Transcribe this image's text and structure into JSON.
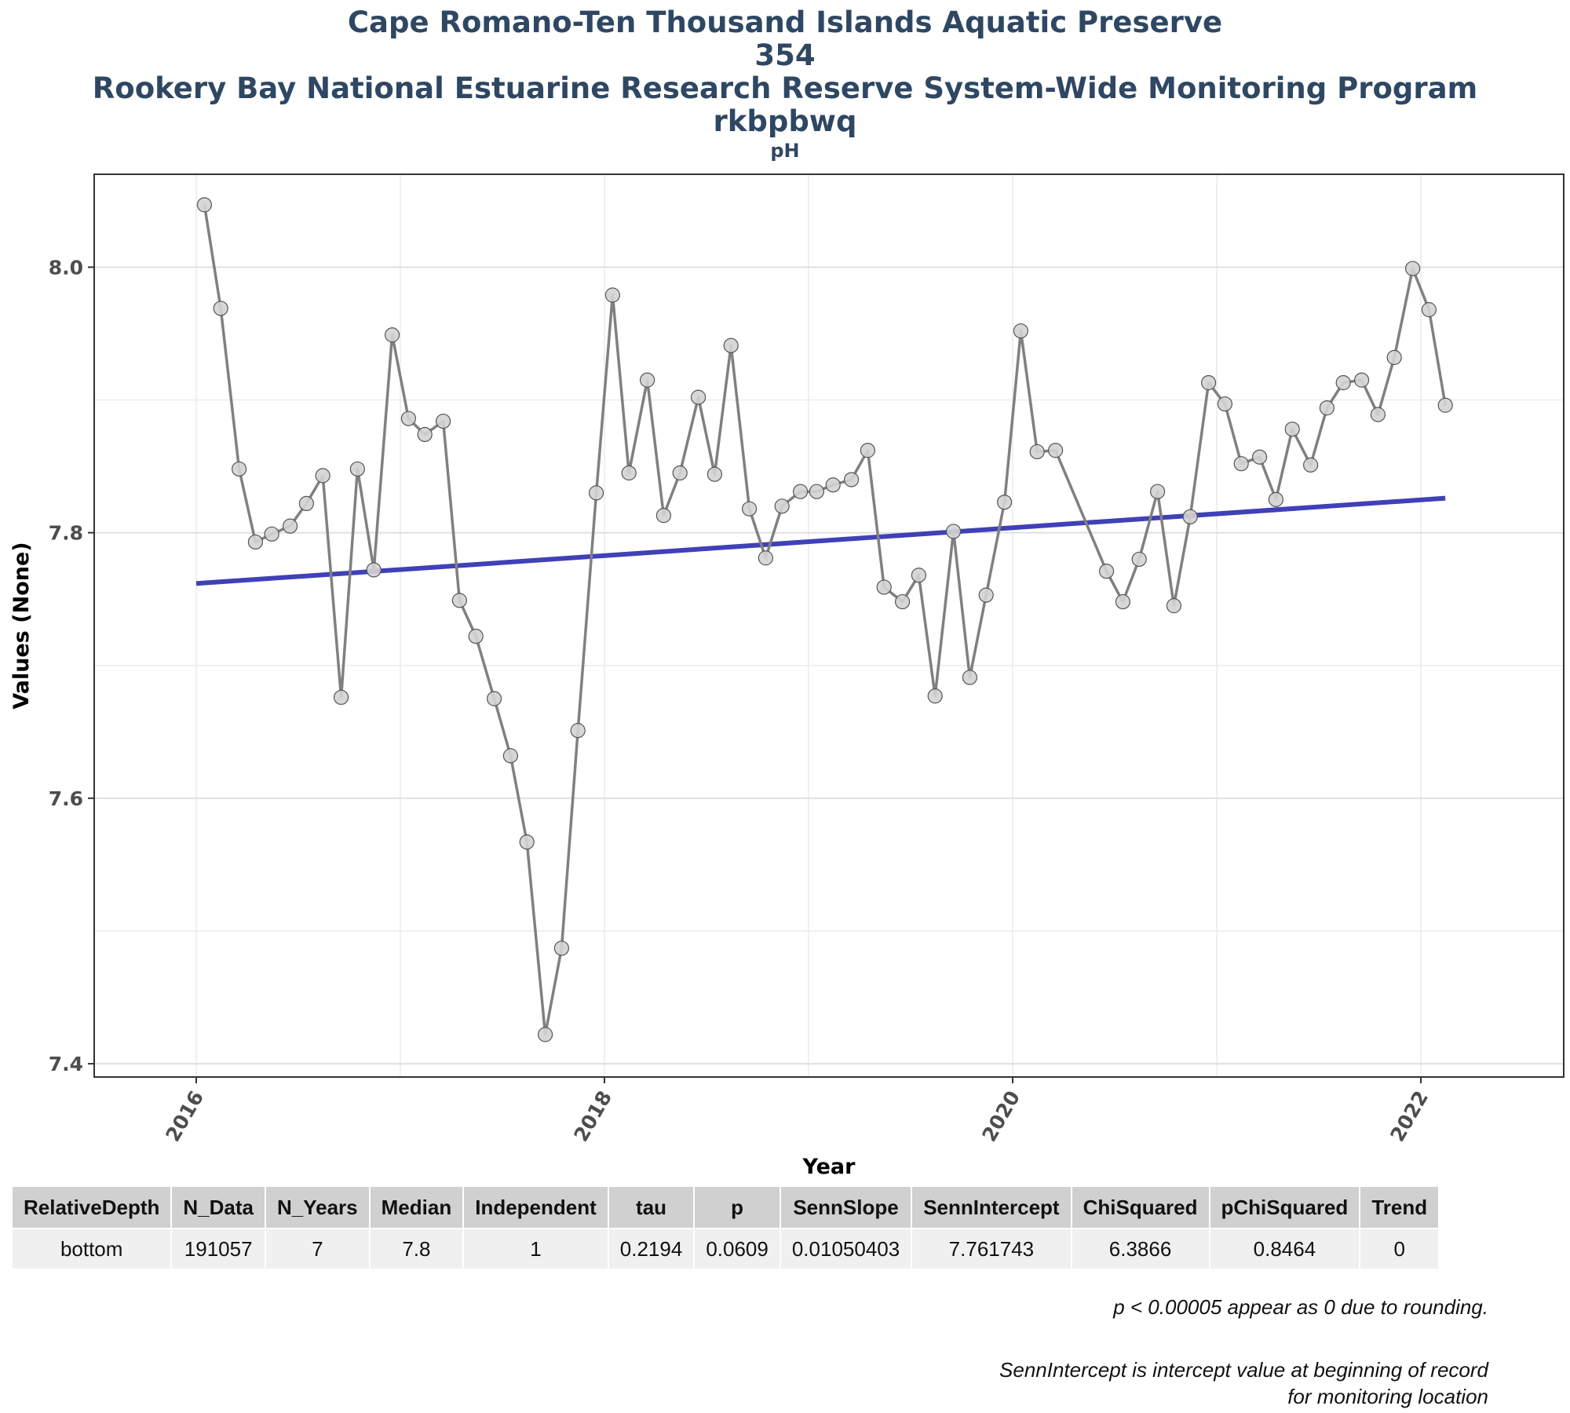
{
  "titles": {
    "line1": "Cape Romano-Ten Thousand Islands Aquatic Preserve",
    "line2": "354",
    "line3": "Rookery Bay National Estuarine Research Reserve System-Wide Monitoring Program",
    "line4": "rkbpbwq",
    "subtitle": "pH"
  },
  "chart_data": {
    "type": "line",
    "xlabel": "Year",
    "ylabel": "Values (None)",
    "xlim": [
      2015.5,
      2022.7
    ],
    "ylim": [
      7.39,
      8.07
    ],
    "x_ticks": [
      "2016",
      "2018",
      "2020",
      "2022"
    ],
    "y_ticks": [
      "7.4",
      "7.6",
      "7.8",
      "8.0"
    ],
    "grid": true,
    "series": [
      {
        "x": [
          2016.04,
          2016.12,
          2016.21,
          2016.29,
          2016.37,
          2016.46,
          2016.54,
          2016.62,
          2016.71,
          2016.79,
          2016.87,
          2016.96,
          2017.04,
          2017.12,
          2017.21,
          2017.29,
          2017.37,
          2017.46,
          2017.54,
          2017.62,
          2017.71,
          2017.79,
          2017.87,
          2017.96,
          2018.04,
          2018.12,
          2018.21,
          2018.29,
          2018.37,
          2018.46,
          2018.54,
          2018.62,
          2018.71,
          2018.79,
          2018.87,
          2018.96,
          2019.04,
          2019.12,
          2019.21,
          2019.29,
          2019.37,
          2019.46,
          2019.54,
          2019.62,
          2019.71,
          2019.79,
          2019.87,
          2019.96,
          2020.04,
          2020.12,
          2020.21,
          2020.46,
          2020.54,
          2020.62,
          2020.71,
          2020.79,
          2020.87,
          2020.96,
          2021.04,
          2021.12,
          2021.21,
          2021.29,
          2021.37,
          2021.46,
          2021.54,
          2021.62,
          2021.71,
          2021.79,
          2021.87,
          2021.96,
          2022.04,
          2022.12
        ],
        "y": [
          8.047,
          7.969,
          7.848,
          7.793,
          7.799,
          7.805,
          7.822,
          7.843,
          7.676,
          7.848,
          7.772,
          7.949,
          7.886,
          7.874,
          7.884,
          7.749,
          7.722,
          7.675,
          7.632,
          7.567,
          7.422,
          7.487,
          7.651,
          7.83,
          7.979,
          7.845,
          7.915,
          7.813,
          7.845,
          7.902,
          7.844,
          7.941,
          7.818,
          7.781,
          7.82,
          7.831,
          7.831,
          7.836,
          7.84,
          7.862,
          7.759,
          7.748,
          7.768,
          7.677,
          7.801,
          7.691,
          7.753,
          7.823,
          7.952,
          7.861,
          7.862,
          7.771,
          7.748,
          7.78,
          7.831,
          7.745,
          7.812,
          7.913,
          7.897,
          7.852,
          7.857,
          7.825,
          7.878,
          7.851,
          7.894,
          7.913,
          7.915,
          7.889,
          7.932,
          7.999,
          7.968,
          7.896
        ]
      }
    ],
    "trend": {
      "x": [
        2016.0,
        2022.12
      ],
      "y": [
        7.761743,
        7.826
      ]
    }
  },
  "table": {
    "headers": [
      "RelativeDepth",
      "N_Data",
      "N_Years",
      "Median",
      "Independent",
      "tau",
      "p",
      "SennSlope",
      "SennIntercept",
      "ChiSquared",
      "pChiSquared",
      "Trend"
    ],
    "rows": [
      [
        "bottom",
        "191057",
        "7",
        "7.8",
        "1",
        "0.2194",
        "0.0609",
        "0.01050403",
        "7.761743",
        "6.3866",
        "0.8464",
        "0"
      ]
    ]
  },
  "notes": {
    "note1": "p < 0.00005 appear as 0 due to rounding.",
    "note2": "SennIntercept is intercept value at beginning of record for monitoring location"
  },
  "colors": {
    "series_line": "#808080",
    "point_fill": "#d3d3d3",
    "trend_line": "#4040b8",
    "title": "#2e4763"
  }
}
